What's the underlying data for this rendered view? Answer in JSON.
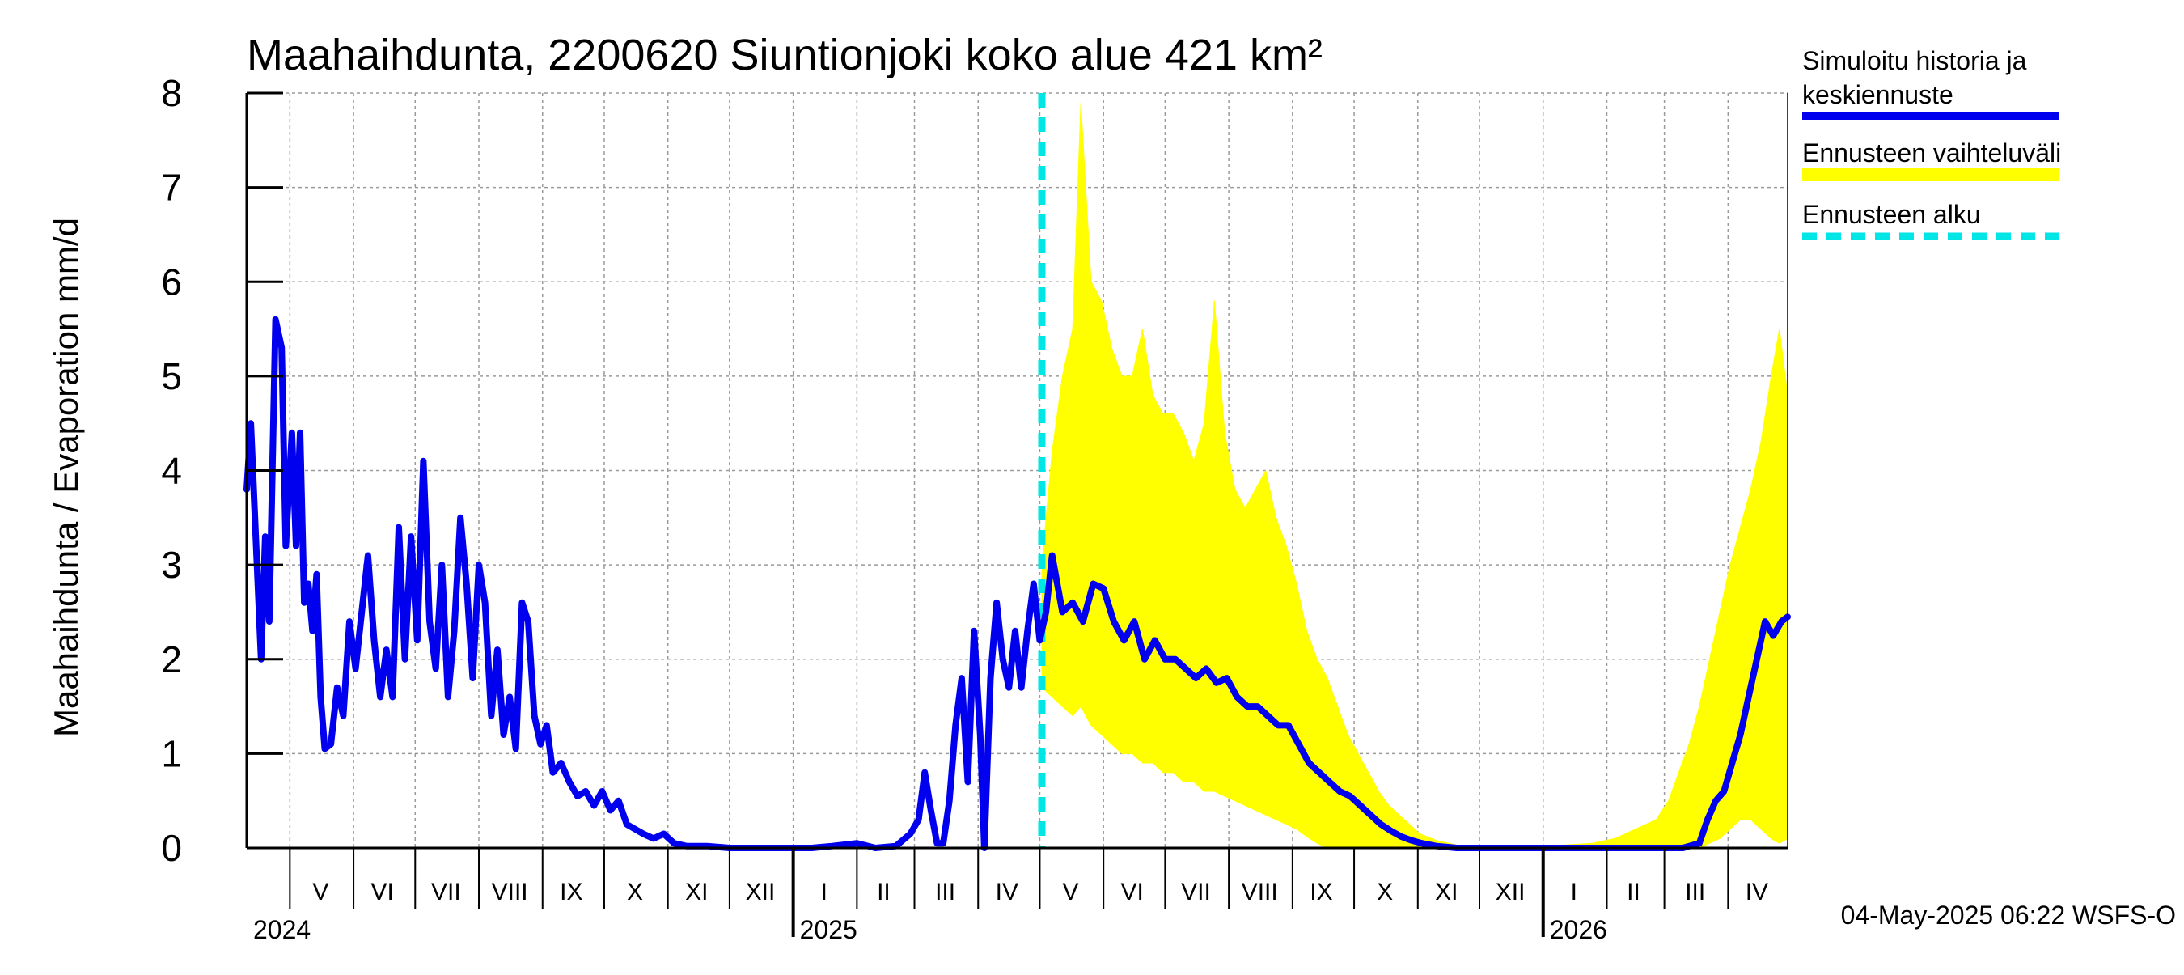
{
  "chart_data": {
    "type": "line",
    "title": "Maahaihdunta, 2200620 Siuntionjoki koko alue 421 km²",
    "ylabel": "Maahaihdunta / Evaporation   mm/d",
    "ylim": [
      0,
      8
    ],
    "yticks": [
      "0",
      "1",
      "2",
      "3",
      "4",
      "5",
      "6",
      "7",
      "8"
    ],
    "xlim": [
      "2024-04-10",
      "2026-04-30"
    ],
    "grid": true,
    "legend_position": "right",
    "month_labels": [
      {
        "label": "V",
        "date": "2024-05-16"
      },
      {
        "label": "VI",
        "date": "2024-06-15"
      },
      {
        "label": "VII",
        "date": "2024-07-16"
      },
      {
        "label": "VIII",
        "date": "2024-08-16"
      },
      {
        "label": "IX",
        "date": "2024-09-15"
      },
      {
        "label": "X",
        "date": "2024-10-16"
      },
      {
        "label": "XI",
        "date": "2024-11-15"
      },
      {
        "label": "XII",
        "date": "2024-12-16"
      },
      {
        "label": "I",
        "date": "2025-01-16"
      },
      {
        "label": "II",
        "date": "2025-02-14"
      },
      {
        "label": "III",
        "date": "2025-03-16"
      },
      {
        "label": "IV",
        "date": "2025-04-15"
      },
      {
        "label": "V",
        "date": "2025-05-16"
      },
      {
        "label": "VI",
        "date": "2025-06-15"
      },
      {
        "label": "VII",
        "date": "2025-07-16"
      },
      {
        "label": "VIII",
        "date": "2025-08-16"
      },
      {
        "label": "IX",
        "date": "2025-09-15"
      },
      {
        "label": "X",
        "date": "2025-10-16"
      },
      {
        "label": "XI",
        "date": "2025-11-15"
      },
      {
        "label": "XII",
        "date": "2025-12-16"
      },
      {
        "label": "I",
        "date": "2026-01-16"
      },
      {
        "label": "II",
        "date": "2026-02-14"
      },
      {
        "label": "III",
        "date": "2026-03-16"
      },
      {
        "label": "IV",
        "date": "2026-04-15"
      }
    ],
    "month_starts": [
      "2024-05-01",
      "2024-06-01",
      "2024-07-01",
      "2024-08-01",
      "2024-09-01",
      "2024-10-01",
      "2024-11-01",
      "2024-12-01",
      "2025-01-01",
      "2025-02-01",
      "2025-03-01",
      "2025-04-01",
      "2025-05-01",
      "2025-06-01",
      "2025-07-01",
      "2025-08-01",
      "2025-09-01",
      "2025-10-01",
      "2025-11-01",
      "2025-12-01",
      "2026-01-01",
      "2026-02-01",
      "2026-03-01",
      "2026-04-01"
    ],
    "year_labels": [
      {
        "label": "2024",
        "date": "2024-04-10"
      },
      {
        "label": "2025",
        "date": "2025-01-01"
      },
      {
        "label": "2026",
        "date": "2026-01-01"
      }
    ],
    "forecast_start": "2025-05-02",
    "series": [
      {
        "name": "Simuloitu historia ja keskiennuste",
        "color": "#0000ee",
        "points": [
          [
            "2024-04-10",
            3.8
          ],
          [
            "2024-04-12",
            4.5
          ],
          [
            "2024-04-15",
            3.0
          ],
          [
            "2024-04-17",
            2.0
          ],
          [
            "2024-04-19",
            3.3
          ],
          [
            "2024-04-21",
            2.4
          ],
          [
            "2024-04-24",
            5.6
          ],
          [
            "2024-04-27",
            5.3
          ],
          [
            "2024-04-29",
            3.2
          ],
          [
            "2024-05-02",
            4.4
          ],
          [
            "2024-05-04",
            3.2
          ],
          [
            "2024-05-06",
            4.4
          ],
          [
            "2024-05-08",
            2.6
          ],
          [
            "2024-05-10",
            2.8
          ],
          [
            "2024-05-12",
            2.3
          ],
          [
            "2024-05-14",
            2.9
          ],
          [
            "2024-05-16",
            1.6
          ],
          [
            "2024-05-18",
            1.05
          ],
          [
            "2024-05-21",
            1.1
          ],
          [
            "2024-05-24",
            1.7
          ],
          [
            "2024-05-27",
            1.4
          ],
          [
            "2024-05-30",
            2.4
          ],
          [
            "2024-06-02",
            1.9
          ],
          [
            "2024-06-05",
            2.5
          ],
          [
            "2024-06-08",
            3.1
          ],
          [
            "2024-06-11",
            2.2
          ],
          [
            "2024-06-14",
            1.6
          ],
          [
            "2024-06-17",
            2.1
          ],
          [
            "2024-06-20",
            1.6
          ],
          [
            "2024-06-23",
            3.4
          ],
          [
            "2024-06-26",
            2.0
          ],
          [
            "2024-06-29",
            3.3
          ],
          [
            "2024-07-02",
            2.2
          ],
          [
            "2024-07-05",
            4.1
          ],
          [
            "2024-07-08",
            2.4
          ],
          [
            "2024-07-11",
            1.9
          ],
          [
            "2024-07-14",
            3.0
          ],
          [
            "2024-07-17",
            1.6
          ],
          [
            "2024-07-20",
            2.3
          ],
          [
            "2024-07-23",
            3.5
          ],
          [
            "2024-07-26",
            2.8
          ],
          [
            "2024-07-29",
            1.8
          ],
          [
            "2024-08-01",
            3.0
          ],
          [
            "2024-08-04",
            2.6
          ],
          [
            "2024-08-07",
            1.4
          ],
          [
            "2024-08-10",
            2.1
          ],
          [
            "2024-08-13",
            1.2
          ],
          [
            "2024-08-16",
            1.6
          ],
          [
            "2024-08-19",
            1.05
          ],
          [
            "2024-08-22",
            2.6
          ],
          [
            "2024-08-25",
            2.4
          ],
          [
            "2024-08-28",
            1.4
          ],
          [
            "2024-08-31",
            1.1
          ],
          [
            "2024-09-03",
            1.3
          ],
          [
            "2024-09-06",
            0.8
          ],
          [
            "2024-09-10",
            0.9
          ],
          [
            "2024-09-14",
            0.7
          ],
          [
            "2024-09-18",
            0.55
          ],
          [
            "2024-09-22",
            0.6
          ],
          [
            "2024-09-26",
            0.45
          ],
          [
            "2024-09-30",
            0.6
          ],
          [
            "2024-10-04",
            0.4
          ],
          [
            "2024-10-08",
            0.5
          ],
          [
            "2024-10-12",
            0.25
          ],
          [
            "2024-10-16",
            0.2
          ],
          [
            "2024-10-20",
            0.15
          ],
          [
            "2024-10-25",
            0.1
          ],
          [
            "2024-10-30",
            0.15
          ],
          [
            "2024-11-04",
            0.05
          ],
          [
            "2024-11-10",
            0.02
          ],
          [
            "2024-11-20",
            0.02
          ],
          [
            "2024-12-01",
            0.0
          ],
          [
            "2024-12-20",
            0.0
          ],
          [
            "2025-01-10",
            0.0
          ],
          [
            "2025-01-20",
            0.02
          ],
          [
            "2025-02-01",
            0.05
          ],
          [
            "2025-02-10",
            0.0
          ],
          [
            "2025-02-20",
            0.02
          ],
          [
            "2025-02-27",
            0.15
          ],
          [
            "2025-03-03",
            0.3
          ],
          [
            "2025-03-06",
            0.8
          ],
          [
            "2025-03-09",
            0.4
          ],
          [
            "2025-03-12",
            0.05
          ],
          [
            "2025-03-15",
            0.05
          ],
          [
            "2025-03-18",
            0.5
          ],
          [
            "2025-03-21",
            1.3
          ],
          [
            "2025-03-24",
            1.8
          ],
          [
            "2025-03-27",
            0.7
          ],
          [
            "2025-03-30",
            2.3
          ],
          [
            "2025-04-02",
            1.2
          ],
          [
            "2025-04-04",
            0.0
          ],
          [
            "2025-04-07",
            1.8
          ],
          [
            "2025-04-10",
            2.6
          ],
          [
            "2025-04-13",
            2.0
          ],
          [
            "2025-04-16",
            1.7
          ],
          [
            "2025-04-19",
            2.3
          ],
          [
            "2025-04-22",
            1.7
          ],
          [
            "2025-04-25",
            2.3
          ],
          [
            "2025-04-28",
            2.8
          ],
          [
            "2025-05-01",
            2.2
          ],
          [
            "2025-05-04",
            2.5
          ],
          [
            "2025-05-07",
            3.1
          ],
          [
            "2025-05-12",
            2.5
          ],
          [
            "2025-05-17",
            2.6
          ],
          [
            "2025-05-22",
            2.4
          ],
          [
            "2025-05-27",
            2.8
          ],
          [
            "2025-06-01",
            2.75
          ],
          [
            "2025-06-06",
            2.4
          ],
          [
            "2025-06-11",
            2.2
          ],
          [
            "2025-06-16",
            2.4
          ],
          [
            "2025-06-21",
            2.0
          ],
          [
            "2025-06-26",
            2.2
          ],
          [
            "2025-07-01",
            2.0
          ],
          [
            "2025-07-06",
            2.0
          ],
          [
            "2025-07-11",
            1.9
          ],
          [
            "2025-07-16",
            1.8
          ],
          [
            "2025-07-21",
            1.9
          ],
          [
            "2025-07-26",
            1.75
          ],
          [
            "2025-07-31",
            1.8
          ],
          [
            "2025-08-05",
            1.6
          ],
          [
            "2025-08-10",
            1.5
          ],
          [
            "2025-08-15",
            1.5
          ],
          [
            "2025-08-20",
            1.4
          ],
          [
            "2025-08-25",
            1.3
          ],
          [
            "2025-08-30",
            1.3
          ],
          [
            "2025-09-04",
            1.1
          ],
          [
            "2025-09-09",
            0.9
          ],
          [
            "2025-09-14",
            0.8
          ],
          [
            "2025-09-19",
            0.7
          ],
          [
            "2025-09-24",
            0.6
          ],
          [
            "2025-09-29",
            0.55
          ],
          [
            "2025-10-04",
            0.45
          ],
          [
            "2025-10-09",
            0.35
          ],
          [
            "2025-10-14",
            0.25
          ],
          [
            "2025-10-19",
            0.18
          ],
          [
            "2025-10-24",
            0.12
          ],
          [
            "2025-10-29",
            0.08
          ],
          [
            "2025-11-03",
            0.05
          ],
          [
            "2025-11-10",
            0.02
          ],
          [
            "2025-11-20",
            0.0
          ],
          [
            "2025-12-10",
            0.0
          ],
          [
            "2026-01-10",
            0.0
          ],
          [
            "2026-02-10",
            0.0
          ],
          [
            "2026-03-10",
            0.0
          ],
          [
            "2026-03-18",
            0.05
          ],
          [
            "2026-03-22",
            0.3
          ],
          [
            "2026-03-26",
            0.5
          ],
          [
            "2026-03-30",
            0.6
          ],
          [
            "2026-04-03",
            0.9
          ],
          [
            "2026-04-07",
            1.2
          ],
          [
            "2026-04-11",
            1.6
          ],
          [
            "2026-04-15",
            2.0
          ],
          [
            "2026-04-19",
            2.4
          ],
          [
            "2026-04-23",
            2.25
          ],
          [
            "2026-04-27",
            2.4
          ],
          [
            "2026-04-30",
            2.45
          ]
        ]
      },
      {
        "name": "Ennusteen vaihteluväli",
        "color": "#ffff00",
        "band": [
          [
            "2025-05-02",
            1.7,
            3.0
          ],
          [
            "2025-05-07",
            1.6,
            4.2
          ],
          [
            "2025-05-12",
            1.5,
            5.0
          ],
          [
            "2025-05-17",
            1.4,
            5.5
          ],
          [
            "2025-05-21",
            1.5,
            7.9
          ],
          [
            "2025-05-26",
            1.3,
            6.0
          ],
          [
            "2025-05-31",
            1.2,
            5.8
          ],
          [
            "2025-06-05",
            1.1,
            5.3
          ],
          [
            "2025-06-10",
            1.0,
            5.0
          ],
          [
            "2025-06-15",
            1.0,
            5.0
          ],
          [
            "2025-06-20",
            0.9,
            5.5
          ],
          [
            "2025-06-25",
            0.9,
            4.8
          ],
          [
            "2025-06-30",
            0.8,
            4.6
          ],
          [
            "2025-07-05",
            0.8,
            4.6
          ],
          [
            "2025-07-10",
            0.7,
            4.4
          ],
          [
            "2025-07-15",
            0.7,
            4.1
          ],
          [
            "2025-07-20",
            0.6,
            4.5
          ],
          [
            "2025-07-25",
            0.6,
            5.8
          ],
          [
            "2025-07-30",
            0.55,
            4.4
          ],
          [
            "2025-08-04",
            0.5,
            3.8
          ],
          [
            "2025-08-09",
            0.45,
            3.6
          ],
          [
            "2025-08-14",
            0.4,
            3.8
          ],
          [
            "2025-08-19",
            0.35,
            4.0
          ],
          [
            "2025-08-24",
            0.3,
            3.5
          ],
          [
            "2025-08-29",
            0.25,
            3.2
          ],
          [
            "2025-09-03",
            0.2,
            2.8
          ],
          [
            "2025-09-08",
            0.12,
            2.3
          ],
          [
            "2025-09-13",
            0.05,
            2.0
          ],
          [
            "2025-09-18",
            0.0,
            1.8
          ],
          [
            "2025-09-23",
            0.0,
            1.5
          ],
          [
            "2025-09-28",
            0.0,
            1.2
          ],
          [
            "2025-10-03",
            0.0,
            1.0
          ],
          [
            "2025-10-08",
            0.0,
            0.8
          ],
          [
            "2025-10-13",
            0.0,
            0.6
          ],
          [
            "2025-10-18",
            0.0,
            0.45
          ],
          [
            "2025-10-23",
            0.0,
            0.35
          ],
          [
            "2025-10-28",
            0.0,
            0.25
          ],
          [
            "2025-11-02",
            0.0,
            0.15
          ],
          [
            "2025-11-10",
            0.0,
            0.08
          ],
          [
            "2025-11-20",
            0.0,
            0.03
          ],
          [
            "2025-12-10",
            0.0,
            0.02
          ],
          [
            "2026-01-10",
            0.0,
            0.03
          ],
          [
            "2026-01-25",
            0.0,
            0.05
          ],
          [
            "2026-02-05",
            0.0,
            0.1
          ],
          [
            "2026-02-15",
            0.0,
            0.2
          ],
          [
            "2026-02-25",
            0.0,
            0.3
          ],
          [
            "2026-03-03",
            0.0,
            0.5
          ],
          [
            "2026-03-08",
            0.0,
            0.8
          ],
          [
            "2026-03-13",
            0.0,
            1.1
          ],
          [
            "2026-03-18",
            0.0,
            1.5
          ],
          [
            "2026-03-23",
            0.05,
            2.0
          ],
          [
            "2026-03-28",
            0.1,
            2.5
          ],
          [
            "2026-04-02",
            0.2,
            3.0
          ],
          [
            "2026-04-07",
            0.3,
            3.4
          ],
          [
            "2026-04-12",
            0.3,
            3.8
          ],
          [
            "2026-04-17",
            0.2,
            4.3
          ],
          [
            "2026-04-22",
            0.1,
            5.0
          ],
          [
            "2026-04-26",
            0.05,
            5.5
          ],
          [
            "2026-04-30",
            0.1,
            4.8
          ]
        ]
      },
      {
        "name": "Ennusteen alku",
        "color": "#00e5e5"
      }
    ]
  },
  "legend": {
    "items": [
      {
        "label": "Simuloitu historia ja",
        "label2": "keskiennuste",
        "color": "#0000ee",
        "style": "solid"
      },
      {
        "label": "Ennusteen vaihteluväli",
        "color": "#ffff00",
        "style": "solid"
      },
      {
        "label": "Ennusteen alku",
        "color": "#00e5e5",
        "style": "dashed"
      }
    ]
  },
  "footer": {
    "timestamp": "04-May-2025 06:22 WSFS-O"
  }
}
